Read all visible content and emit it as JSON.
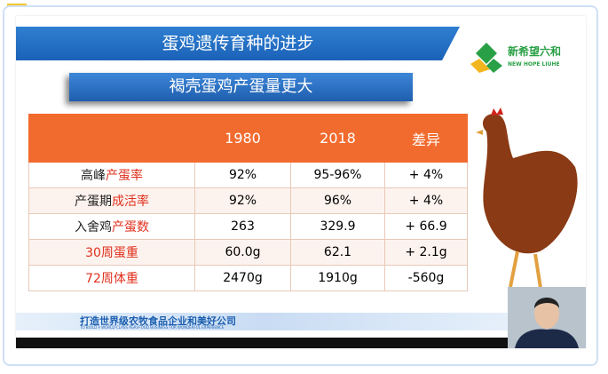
{
  "header": {
    "title": "蛋鸡遗传育种的进步",
    "subtitle": "褐壳蛋鸡产蛋量更大",
    "logo": "新希望六和",
    "logo_en": "NEW HOPE LIUHE"
  },
  "table": {
    "columns": [
      "1980",
      "2018",
      "差异"
    ],
    "rows": [
      {
        "label": [
          {
            "text": "高峰",
            "color": "#222222"
          },
          {
            "text": "产蛋率",
            "color": "#e0301e"
          }
        ],
        "cells": [
          "92%",
          "95-96%",
          "+ 4%"
        ]
      },
      {
        "label": [
          {
            "text": "产蛋期",
            "color": "#222222"
          },
          {
            "text": "成活率",
            "color": "#e0301e"
          }
        ],
        "cells": [
          "92%",
          "96%",
          "+ 4%"
        ]
      },
      {
        "label": [
          {
            "text": "入舍鸡",
            "color": "#222222"
          },
          {
            "text": "产蛋数",
            "color": "#e0301e"
          }
        ],
        "cells": [
          "263",
          "329.9",
          "+ 66.9"
        ]
      },
      {
        "label": [
          {
            "text": "30周蛋重",
            "color": "#e0301e"
          }
        ],
        "cells": [
          "60.0g",
          "62.1",
          "+ 2.1g"
        ]
      },
      {
        "label": [
          {
            "text": "72周体重",
            "color": "#e0301e"
          }
        ],
        "cells": [
          "2470g",
          "1910g",
          "-560g"
        ]
      }
    ]
  },
  "footer": {
    "text": "打造世界级农牧食品企业和美好公司",
    "subtext": "TO BUILD A WORLD-CLASS AGRI-FOOD BUSINESS FOR WONDERFUL EXPERIENCE"
  }
}
